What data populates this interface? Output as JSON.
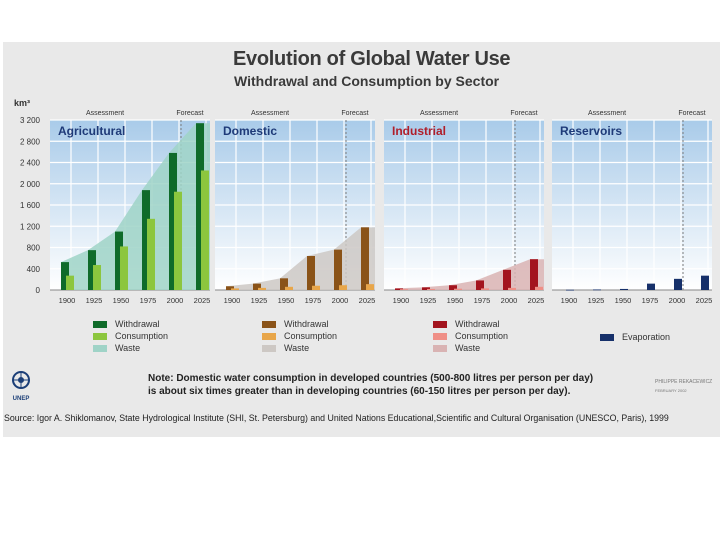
{
  "header": {
    "title": "Evolution of Global Water Use",
    "subtitle": "Withdrawal and Consumption by Sector"
  },
  "chart_data": {
    "type": "bar",
    "y_unit": "km³",
    "y_ticks": [
      "3 200",
      "2 800",
      "2 400",
      "2 000",
      "1 600",
      "1 200",
      "800",
      "400",
      "0"
    ],
    "ylim": [
      0,
      3200
    ],
    "categories": [
      "1900",
      "1925",
      "1950",
      "1975",
      "2000",
      "2025"
    ],
    "period_labels": {
      "assessment": "Assessment",
      "forecast": "Forecast"
    },
    "panels": [
      {
        "name": "Agricultural",
        "name_color": "#1e3a78",
        "series": [
          {
            "name": "Withdrawal",
            "color": "#0f6b2a",
            "values": [
              525,
              750,
              1100,
              1880,
              2580,
              3140
            ]
          },
          {
            "name": "Consumption",
            "color": "#8cc63e",
            "values": [
              270,
              470,
              820,
              1340,
              1850,
              2250
            ]
          },
          {
            "name": "Waste",
            "color": "#9fd3c7",
            "values": [
              525,
              750,
              1100,
              1880,
              2580,
              3140
            ]
          }
        ]
      },
      {
        "name": "Domestic",
        "name_color": "#1e3a78",
        "series": [
          {
            "name": "Withdrawal",
            "color": "#8a5318",
            "values": [
              70,
              120,
              220,
              640,
              760,
              1180
            ]
          },
          {
            "name": "Consumption",
            "color": "#e8a64a",
            "values": [
              30,
              40,
              60,
              80,
              90,
              110
            ]
          },
          {
            "name": "Waste",
            "color": "#cdc8c4",
            "values": [
              70,
              120,
              220,
              640,
              760,
              1180
            ]
          }
        ]
      },
      {
        "name": "Industrial",
        "name_color": "#b01e2a",
        "series": [
          {
            "name": "Withdrawal",
            "color": "#a3141e",
            "values": [
              30,
              50,
              90,
              180,
              380,
              580
            ]
          },
          {
            "name": "Consumption",
            "color": "#ef8f86",
            "values": [
              15,
              20,
              25,
              30,
              40,
              60
            ]
          },
          {
            "name": "Waste",
            "color": "#d9b3b3",
            "values": [
              30,
              50,
              90,
              180,
              380,
              580
            ]
          }
        ]
      },
      {
        "name": "Reservoirs",
        "name_color": "#1e3a78",
        "series": [
          {
            "name": "Evaporation",
            "color": "#16306a",
            "values": [
              5,
              10,
              20,
              120,
              210,
              270
            ]
          }
        ]
      }
    ],
    "legend": [
      [
        "Withdrawal",
        "Consumption",
        "Waste"
      ],
      [
        "Withdrawal",
        "Consumption",
        "Waste"
      ],
      [
        "Withdrawal",
        "Consumption",
        "Waste"
      ],
      [
        "Evaporation"
      ]
    ]
  },
  "note": {
    "line1": "Note: Domestic water consumption in developed countries (500-800 litres per person per day)",
    "line2": "is about six times greater than in developing countries (60-150 litres per person per day)."
  },
  "credit": {
    "author": "PHILIPPE REKACEWICZ",
    "date": "FEBRUARY 2002"
  },
  "source": "Source: Igor A. Shiklomanov, State Hydrological Institute (SHI, St. Petersburg) and United Nations Educational,Scientific and Cultural Organisation (UNESCO, Paris), 1999",
  "logo": {
    "text": "UNEP"
  }
}
